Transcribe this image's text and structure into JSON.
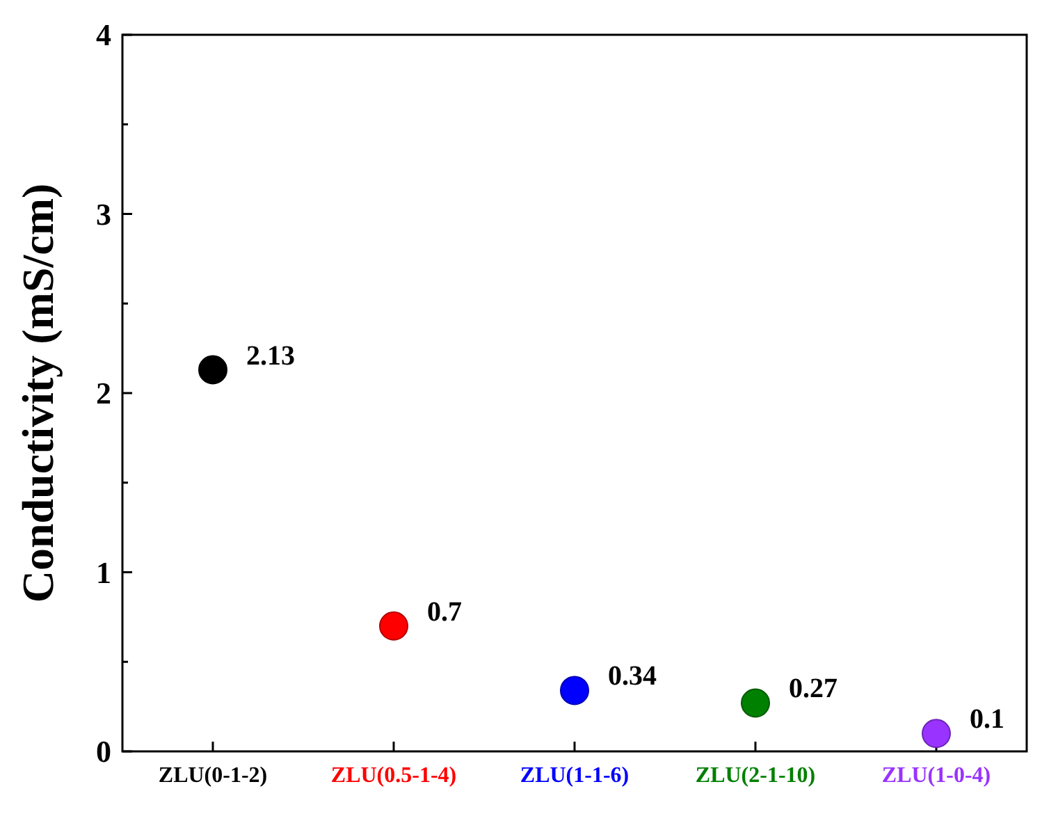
{
  "chart_data": {
    "type": "scatter",
    "ylabel": "Conductivity (mS/cm)",
    "categories": [
      "ZLU(0-1-2)",
      "ZLU(0.5-1-4)",
      "ZLU(1-1-6)",
      "ZLU(2-1-10)",
      "ZLU(1-0-4)"
    ],
    "values": [
      2.13,
      0.7,
      0.34,
      0.27,
      0.1
    ],
    "colors": [
      "#000000",
      "#ff0000",
      "#0000ff",
      "#008000",
      "#9933ff"
    ],
    "ylim": [
      0,
      4
    ],
    "yticks": [
      0,
      {
        "value": 0.5,
        "label": null
      },
      1,
      {
        "value": 1.5,
        "label": null
      },
      2,
      {
        "value": 2.5,
        "label": null
      },
      3,
      {
        "value": 3.5,
        "label": null
      },
      4
    ],
    "data_labels": true,
    "marker": "circle"
  }
}
